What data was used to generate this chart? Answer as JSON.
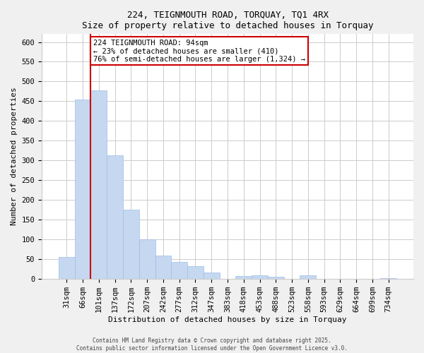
{
  "title": "224, TEIGNMOUTH ROAD, TORQUAY, TQ1 4RX",
  "subtitle": "Size of property relative to detached houses in Torquay",
  "xlabel": "Distribution of detached houses by size in Torquay",
  "ylabel": "Number of detached properties",
  "bar_labels": [
    "31sqm",
    "66sqm",
    "101sqm",
    "137sqm",
    "172sqm",
    "207sqm",
    "242sqm",
    "277sqm",
    "312sqm",
    "347sqm",
    "383sqm",
    "418sqm",
    "453sqm",
    "488sqm",
    "523sqm",
    "558sqm",
    "593sqm",
    "629sqm",
    "664sqm",
    "699sqm",
    "734sqm"
  ],
  "bar_values": [
    55,
    455,
    478,
    312,
    175,
    100,
    58,
    42,
    31,
    15,
    0,
    6,
    9,
    5,
    0,
    8,
    0,
    0,
    0,
    0,
    2
  ],
  "bar_color": "#c5d8f0",
  "bar_edge_color": "#9dbee8",
  "vline_color": "#cc0000",
  "annotation_line1": "224 TEIGNMOUTH ROAD: 94sqm",
  "annotation_line2": "← 23% of detached houses are smaller (410)",
  "annotation_line3": "76% of semi-detached houses are larger (1,324) →",
  "annotation_box_edge": "#cc0000",
  "annotation_box_facecolor": "#ffffff",
  "ylim": [
    0,
    620
  ],
  "yticks": [
    0,
    50,
    100,
    150,
    200,
    250,
    300,
    350,
    400,
    450,
    500,
    550,
    600
  ],
  "footer1": "Contains HM Land Registry data © Crown copyright and database right 2025.",
  "footer2": "Contains public sector information licensed under the Open Government Licence v3.0.",
  "background_color": "#f0f0f0",
  "plot_background_color": "#ffffff",
  "grid_color": "#cccccc",
  "title_fontsize": 9,
  "subtitle_fontsize": 8,
  "axis_label_fontsize": 8,
  "tick_fontsize": 7.5,
  "annotation_fontsize": 7.5,
  "footer_fontsize": 5.5
}
